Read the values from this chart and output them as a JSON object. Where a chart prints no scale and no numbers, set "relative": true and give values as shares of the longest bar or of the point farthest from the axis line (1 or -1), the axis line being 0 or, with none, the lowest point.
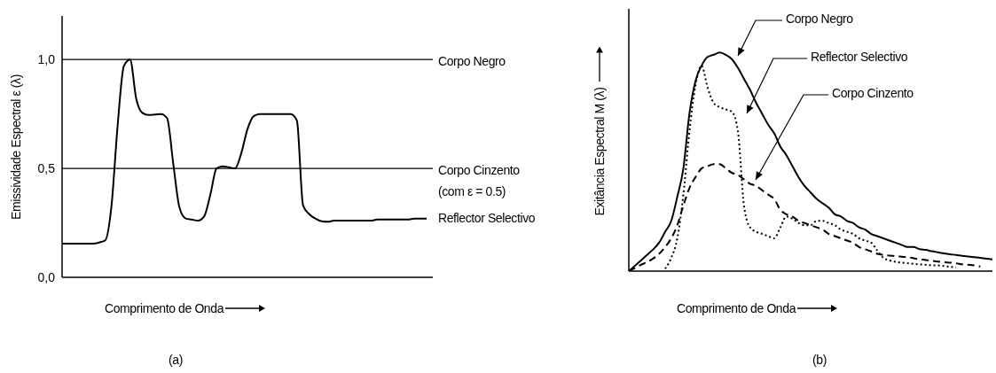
{
  "chart_data": [
    {
      "type": "line",
      "ylabel": "Emissividade Espectral ε (λ)",
      "xlabel": "Comprimento de Onda",
      "annotations": [
        "(a)"
      ],
      "tick_labels": "y",
      "categories": [
        null,
        null,
        null,
        null,
        null,
        null,
        null,
        null,
        null,
        null,
        null,
        null,
        null,
        null,
        null,
        null,
        null,
        null,
        null,
        null,
        null,
        null,
        null,
        null,
        null,
        null,
        null,
        null,
        null,
        null,
        null,
        null,
        null,
        null,
        null,
        null,
        null,
        null,
        null,
        null,
        null,
        null,
        null,
        null,
        null,
        null,
        null,
        null,
        null,
        null,
        null,
        null,
        null,
        null,
        null,
        null,
        null,
        null,
        null,
        null,
        null
      ],
      "series": [
        {
          "name": "Reflector Selectivo",
          "color": "#000000",
          "values": [
            0.155,
            0.155,
            0.155,
            0.155,
            0.155,
            0.155,
            0.16,
            0.17,
            0.33,
            0.7,
            0.97,
            1.0,
            0.82,
            0.755,
            0.745,
            0.747,
            0.75,
            0.73,
            0.52,
            0.32,
            0.27,
            0.265,
            0.26,
            0.28,
            0.38,
            0.5,
            0.51,
            0.505,
            0.5,
            0.57,
            0.68,
            0.74,
            0.75,
            0.75,
            0.75,
            0.75,
            0.75,
            0.75,
            0.72,
            0.33,
            0.29,
            0.27,
            0.257,
            0.255,
            0.26,
            0.26,
            0.26,
            0.26,
            0.26,
            0.26,
            0.26,
            0.265,
            0.265,
            0.265,
            0.265,
            0.265,
            0.265,
            0.27,
            0.27,
            0.27,
            null
          ]
        }
      ],
      "ylim": [
        0,
        1.2
      ],
      "yticks": [
        {
          "value": 0,
          "label": "0,0"
        },
        {
          "value": 0.5,
          "label": "0,5"
        },
        {
          "value": 1,
          "label": "1,0"
        }
      ],
      "ref_lines": [
        {
          "axis": "y",
          "value": 1,
          "label": "Corpo Negro",
          "color": "#000000"
        },
        {
          "axis": "y",
          "value": 0.5,
          "label": "Corpo Cinzento (com ε = 0.5)",
          "color": "#000000"
        }
      ]
    },
    {
      "type": "line",
      "relative": true,
      "ylabel": "Exitância Espectral M (λ)",
      "xlabel": "Comprimento de Onda",
      "annotations": [
        "(b)"
      ],
      "tick_labels": false,
      "categories": [
        null,
        null,
        null,
        null,
        null,
        null,
        null,
        null,
        null,
        null,
        null,
        null,
        null,
        null,
        null,
        null,
        null,
        null,
        null,
        null,
        null,
        null,
        null,
        null,
        null,
        null,
        null,
        null,
        null,
        null,
        null,
        null,
        null,
        null,
        null,
        null,
        null,
        null,
        null,
        null,
        null,
        null,
        null,
        null,
        null,
        null,
        null,
        null,
        null,
        null,
        null,
        null,
        null,
        null,
        null,
        null,
        null,
        null,
        null,
        null,
        null
      ],
      "series": [
        {
          "name": "Corpo Negro",
          "color": "#000000",
          "line_style": "solid",
          "values": [
            0,
            0.024,
            0.049,
            0.074,
            0.099,
            0.13,
            0.18,
            0.23,
            0.34,
            0.47,
            0.72,
            0.87,
            0.94,
            0.98,
            0.99,
            1.0,
            0.99,
            0.97,
            0.93,
            0.88,
            0.83,
            0.77,
            0.72,
            0.67,
            0.63,
            0.57,
            0.53,
            0.48,
            0.43,
            0.39,
            0.36,
            0.33,
            0.31,
            0.29,
            0.26,
            0.25,
            0.23,
            0.22,
            0.2,
            0.19,
            0.17,
            0.16,
            0.15,
            0.14,
            0.13,
            0.12,
            0.11,
            0.11,
            0.1,
            0.097,
            0.091,
            0.086,
            0.081,
            0.077,
            0.074,
            0.07,
            0.067,
            0.064,
            0.061,
            0.057,
            0.054
          ]
        },
        {
          "name": "Reflector Selectivo",
          "color": "#000000",
          "line_style": "dotted",
          "values": [
            null,
            null,
            null,
            null,
            null,
            null,
            0.011,
            0.061,
            0.15,
            0.35,
            0.64,
            0.85,
            0.94,
            0.84,
            0.77,
            0.75,
            0.74,
            0.73,
            0.64,
            0.3,
            0.2,
            0.18,
            0.17,
            0.16,
            0.15,
            0.2,
            0.25,
            0.24,
            0.22,
            0.21,
            0.21,
            0.23,
            0.23,
            0.22,
            0.21,
            0.19,
            0.18,
            0.17,
            0.15,
            0.14,
            0.13,
            0.094,
            0.061,
            0.049,
            0.043,
            0.039,
            0.036,
            0.033,
            0.031,
            0.029,
            0.027,
            0.026,
            0.023,
            0.02,
            0.017,
            null,
            null,
            null,
            null,
            null,
            null
          ]
        },
        {
          "name": "Corpo Cinzento",
          "color": "#000000",
          "line_style": "dashed",
          "values": [
            0,
            0.014,
            0.029,
            0.041,
            0.057,
            0.079,
            0.11,
            0.15,
            0.21,
            0.3,
            0.38,
            0.43,
            0.47,
            0.48,
            0.49,
            0.49,
            0.47,
            0.45,
            0.44,
            0.42,
            0.4,
            0.39,
            0.37,
            0.35,
            0.33,
            0.28,
            0.26,
            0.25,
            0.23,
            0.22,
            0.21,
            0.2,
            0.19,
            0.17,
            0.16,
            0.15,
            0.14,
            0.13,
            0.11,
            0.1,
            0.09,
            0.079,
            0.074,
            0.071,
            0.069,
            0.066,
            0.063,
            0.059,
            0.054,
            0.051,
            0.047,
            0.044,
            0.041,
            0.039,
            0.036,
            0.031,
            0.029,
            0.026,
            0.021,
            null,
            null
          ]
        }
      ]
    }
  ]
}
